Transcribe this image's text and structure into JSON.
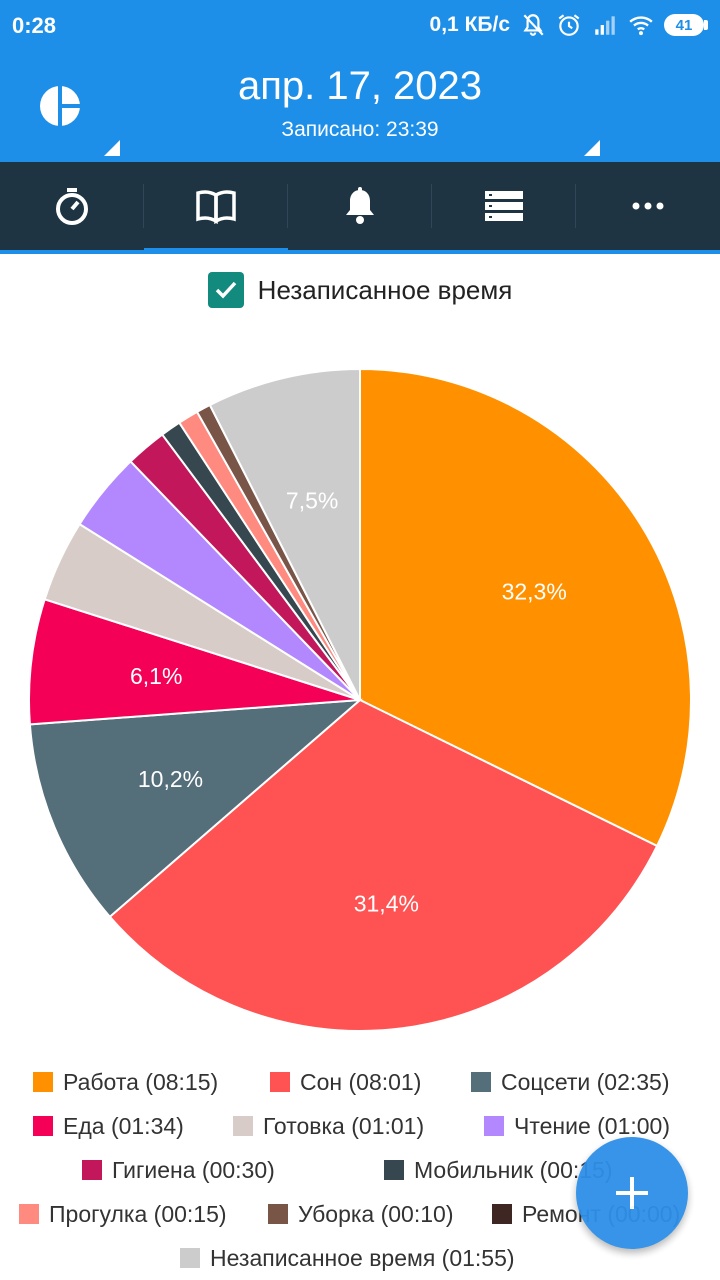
{
  "status_bar": {
    "time": "0:28",
    "net_speed": "0,1 КБ/с",
    "battery": "41",
    "icons": [
      "mute-icon",
      "alarm-icon",
      "signal-icon",
      "wifi-icon",
      "battery-icon"
    ]
  },
  "header": {
    "date": "апр. 17, 2023",
    "subtitle": "Записано: 23:39",
    "logo_icon": "pie-logo-icon",
    "color": "#1d8fe9"
  },
  "tabs": [
    {
      "icon": "stopwatch-icon"
    },
    {
      "icon": "book-icon",
      "active": true
    },
    {
      "icon": "bell-icon"
    },
    {
      "icon": "list-icon"
    },
    {
      "icon": "more-icon"
    }
  ],
  "unrecorded_toggle": {
    "label": "Незаписанное время",
    "checked": true
  },
  "chart_data": {
    "type": "pie",
    "slices": [
      {
        "name": "Работа",
        "time": "08:15",
        "percent": 32.3,
        "label": "32,3%",
        "color": "#ff9100"
      },
      {
        "name": "Сон",
        "time": "08:01",
        "percent": 31.4,
        "label": "31,4%",
        "color": "#ff5252"
      },
      {
        "name": "Соцсети",
        "time": "02:35",
        "percent": 10.2,
        "label": "10,2%",
        "color": "#546e7a"
      },
      {
        "name": "Еда",
        "time": "01:34",
        "percent": 6.1,
        "label": "6,1%",
        "color": "#f50057"
      },
      {
        "name": "Готовка",
        "time": "01:01",
        "percent": 4.0,
        "label": "",
        "color": "#d7ccc8"
      },
      {
        "name": "Чтение",
        "time": "01:00",
        "percent": 3.9,
        "label": "",
        "color": "#b388ff"
      },
      {
        "name": "Гигиена",
        "time": "00:30",
        "percent": 2.0,
        "label": "",
        "color": "#c2185b"
      },
      {
        "name": "Мобильник",
        "time": "00:15",
        "percent": 1.0,
        "label": "",
        "color": "#37474f"
      },
      {
        "name": "Прогулка",
        "time": "00:15",
        "percent": 1.0,
        "label": "",
        "color": "#ff8a80"
      },
      {
        "name": "Уборка",
        "time": "00:10",
        "percent": 0.7,
        "label": "",
        "color": "#795548"
      },
      {
        "name": "Ремонт",
        "time": "00:00",
        "percent": 0.0,
        "label": "",
        "color": "#3e2723"
      },
      {
        "name": "Незаписанное время",
        "time": "01:55",
        "percent": 7.5,
        "label": "7,5%",
        "color": "#cccccc"
      }
    ]
  },
  "legend": {
    "rows": [
      [
        "Работа (08:15)",
        "Сон (08:01)",
        "Соцсети (02:35)"
      ],
      [
        "Еда (01:34)",
        "Готовка (01:01)",
        "Чтение (01:00)"
      ],
      [
        "Гигиена  (00:30)",
        "Мобильник  (00:15)"
      ],
      [
        "Прогулка (00:15)",
        "Уборка (00:10)",
        "Ремонт  (00:00)"
      ],
      [
        "Незаписанное время (01:55)"
      ]
    ]
  },
  "fab": {
    "icon": "plus-icon"
  }
}
